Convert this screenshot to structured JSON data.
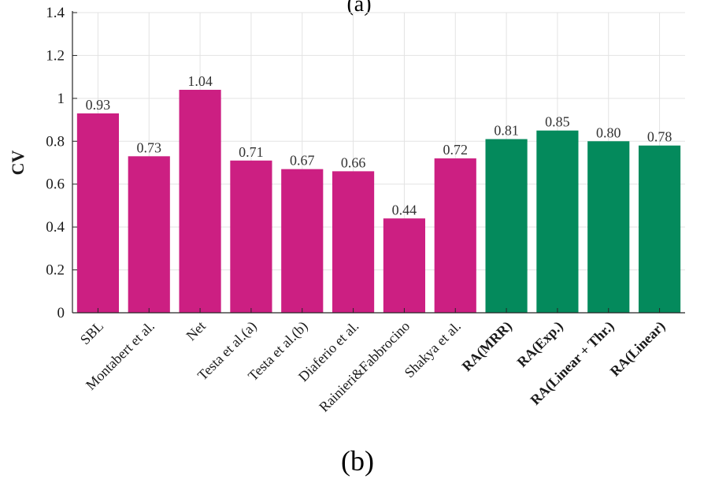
{
  "caption": "(b)",
  "top_caption_fragment": "(a)",
  "colors": {
    "baseline": "#cc1f82",
    "proposed": "#048a5c",
    "grid": "#e3e3e3",
    "axis": "#262626"
  },
  "chart_data": {
    "type": "bar",
    "title": "",
    "xlabel": "",
    "ylabel": "CV",
    "ylim": [
      0,
      1.4
    ],
    "yticks": [
      0,
      0.2,
      0.4,
      0.6,
      0.8,
      1,
      1.2,
      1.4
    ],
    "ytick_labels": [
      "0",
      "0.2",
      "0.4",
      "0.6",
      "0.8",
      "1",
      "1.2",
      "1.4"
    ],
    "grid": true,
    "categories": [
      "SBL",
      "Montabert et al.",
      "Net",
      "Testa et al.(a)",
      "Testa et al.(b)",
      "Diaferio et al.",
      "Rainieri&Fabbrocino",
      "Shakya et al.",
      "RA(MRR)",
      "RA(Exp.)",
      "RA(Linear + Thr.)",
      "RA(Linear)"
    ],
    "values": [
      0.93,
      0.73,
      1.04,
      0.71,
      0.67,
      0.66,
      0.44,
      0.72,
      0.81,
      0.85,
      0.8,
      0.78
    ],
    "value_labels": [
      "0.93",
      "0.73",
      "1.04",
      "0.71",
      "0.67",
      "0.66",
      "0.44",
      "0.72",
      "0.81",
      "0.85",
      "0.80",
      "0.78"
    ],
    "groups": [
      "baseline",
      "baseline",
      "baseline",
      "baseline",
      "baseline",
      "baseline",
      "baseline",
      "baseline",
      "proposed",
      "proposed",
      "proposed",
      "proposed"
    ]
  }
}
